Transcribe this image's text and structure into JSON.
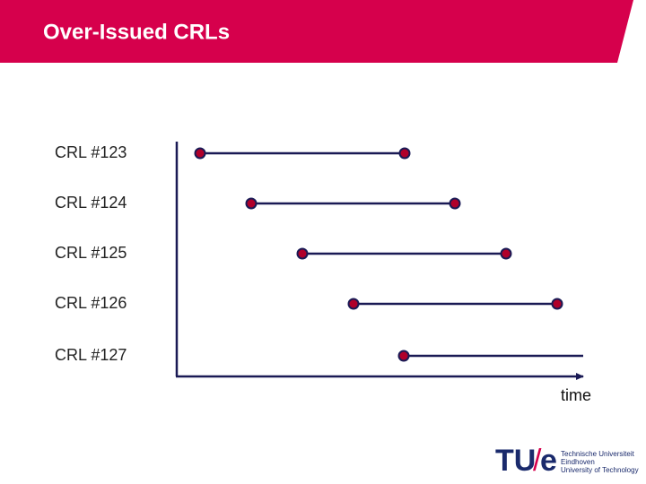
{
  "header": {
    "title": "Over-Issued CRLs"
  },
  "rows": [
    {
      "label": "CRL #123"
    },
    {
      "label": "CRL #124"
    },
    {
      "label": "CRL #125"
    },
    {
      "label": "CRL #126"
    },
    {
      "label": "CRL #127"
    }
  ],
  "axis": {
    "label": "time"
  },
  "logo": {
    "mark": [
      "TU",
      "/",
      "e"
    ],
    "lines": [
      "Technische Universiteit",
      "Eindhoven",
      "University of Technology"
    ]
  }
}
